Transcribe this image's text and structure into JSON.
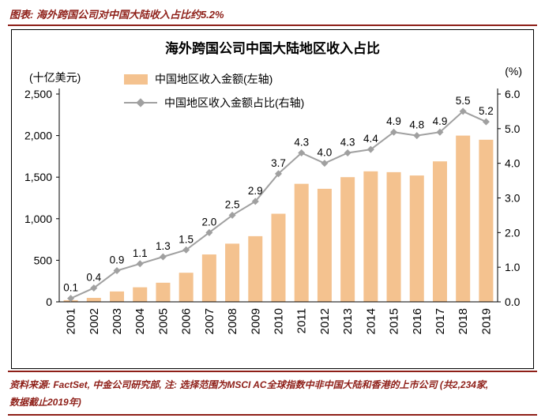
{
  "page": {
    "caption": "图表: 海外跨国公司对中国大陆收入占比约5.2%",
    "source_line1": "资料来源: FactSet, 中金公司研究部, 注: 选择范围为MSCI AC全球指数中非中国大陆和香港的上市公司 (共2,234家,",
    "source_line2": "数据截止2019年)"
  },
  "colors": {
    "accent_red": "#8E1F18",
    "bar_fill": "#F4C28F",
    "line_gray": "#A0A0A0",
    "axis_black": "#000000"
  },
  "chart_data": {
    "type": "combo_bar_line",
    "title": "海外跨国公司中国大陆地区收入占比",
    "categories": [
      "2001",
      "2002",
      "2003",
      "2004",
      "2005",
      "2006",
      "2007",
      "2008",
      "2009",
      "2010",
      "2011",
      "2012",
      "2013",
      "2014",
      "2015",
      "2016",
      "2017",
      "2018",
      "2019"
    ],
    "series": [
      {
        "name": "中国地区收入金额(左轴)",
        "type": "bar",
        "axis": "left",
        "color": "#F4C28F",
        "values": [
          20,
          48,
          125,
          175,
          230,
          350,
          570,
          700,
          790,
          1060,
          1420,
          1360,
          1500,
          1570,
          1560,
          1520,
          1690,
          2000,
          1950
        ]
      },
      {
        "name": "中国地区收入金额占比(右轴)",
        "type": "line",
        "axis": "right",
        "color": "#A0A0A0",
        "values": [
          0.1,
          0.4,
          0.9,
          1.1,
          1.3,
          1.5,
          2.0,
          2.5,
          2.9,
          3.7,
          4.3,
          4.0,
          4.3,
          4.4,
          4.9,
          4.8,
          4.9,
          5.5,
          5.2
        ],
        "labels": [
          "0.1",
          "0.4",
          "0.9",
          "1.1",
          "1.3",
          "1.5",
          "2.0",
          "2.5",
          "2.9",
          "3.7",
          "4.3",
          "4.0",
          "4.3",
          "4.4",
          "4.9",
          "4.8",
          "4.9",
          "5.5",
          "5.2"
        ]
      }
    ],
    "left_axis": {
      "unit": "(十亿美元)",
      "min": 0,
      "max": 2500,
      "step": 500,
      "tick_labels": [
        "0",
        "500",
        "1,000",
        "1,500",
        "2,000",
        "2,500"
      ]
    },
    "right_axis": {
      "unit": "(%)",
      "min": 0,
      "max": 6,
      "step": 1,
      "tick_labels": [
        "0.0",
        "1.0",
        "2.0",
        "3.0",
        "4.0",
        "5.0",
        "6.0"
      ]
    },
    "legend_position": "top-left-inside",
    "grid": false
  }
}
